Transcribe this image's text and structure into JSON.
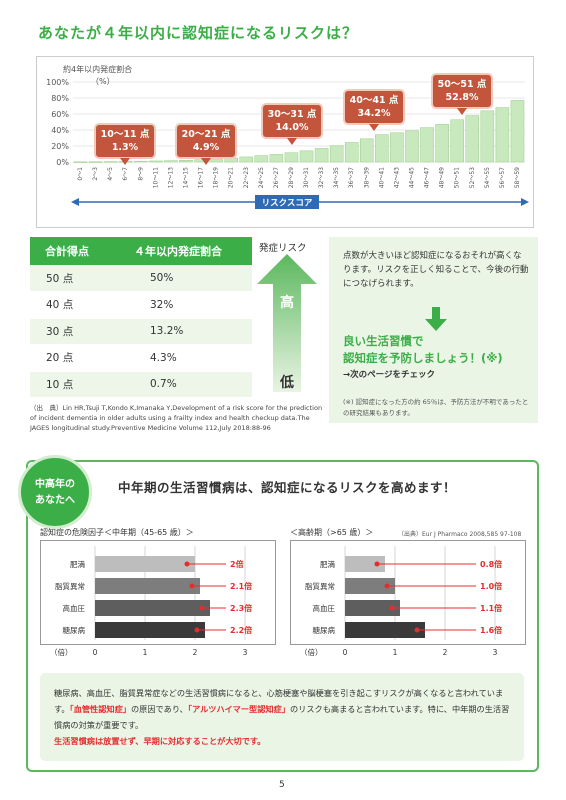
{
  "title": "あなたが４年以内に認知症になるリスクは？",
  "risk_chart": {
    "ylabel_line1": "約4年以内発症割合",
    "ylabel_line2": "（%）",
    "y_ticks": [
      "100%",
      "80%",
      "60%",
      "40%",
      "20%",
      "0%"
    ],
    "xlabel": "リスクスコア",
    "callouts": [
      {
        "score": "10～11 点",
        "rate": "1.3%"
      },
      {
        "score": "20～21 点",
        "rate": "4.9%"
      },
      {
        "score": "30～31 点",
        "rate": "14.0%"
      },
      {
        "score": "40～41 点",
        "rate": "34.2%"
      },
      {
        "score": "50～51 点",
        "rate": "52.8%"
      }
    ]
  },
  "chart_data": {
    "type": "bar",
    "categories": [
      "0～1",
      "2～3",
      "4～5",
      "6～7",
      "8～9",
      "10～11",
      "12～13",
      "14～15",
      "16～17",
      "18～19",
      "20～21",
      "22～23",
      "24～25",
      "26～27",
      "28～29",
      "30～31",
      "32～33",
      "34～35",
      "36～37",
      "38～39",
      "40～41",
      "42～43",
      "44～45",
      "46～47",
      "48～49",
      "50～51",
      "52～53",
      "54～55",
      "56～57",
      "58～59"
    ],
    "values": [
      0.2,
      0.3,
      0.5,
      0.7,
      1.0,
      1.3,
      1.7,
      2.2,
      2.9,
      3.8,
      4.9,
      6.3,
      8.0,
      9.5,
      11.6,
      14.0,
      17.0,
      20.5,
      24.4,
      29.0,
      34.2,
      36.5,
      39.0,
      43.0,
      47.0,
      52.8,
      58.0,
      64.0,
      68.0,
      77.0
    ],
    "ylim": [
      0,
      100
    ]
  },
  "score_table": {
    "headers": [
      "合計得点",
      "４年以内発症割合"
    ],
    "rows": [
      [
        "50 点",
        "50%"
      ],
      [
        "40 点",
        "32%"
      ],
      [
        "30 点",
        "13.2%"
      ],
      [
        "20 点",
        "4.3%"
      ],
      [
        "10 点",
        "0.7%"
      ]
    ]
  },
  "arrow": {
    "label": "発症リスク",
    "high": "高",
    "low": "低"
  },
  "source1": "（出　典）Lin HR,Tsuji T,Kondo K,Imanaka Y,Development of a risk score for the prediction of incident dementia in older adults using a frailty index and health checkup data.The JAGES longitudinal study.Preventive Medicine Volume 112,July 2018:88-96",
  "advice": {
    "text": "点数が大きいほど認知症になるおそれが高くなります。リスクを正しく知ることで、今後の行動につなげられます。",
    "big_line1": "良い生活習慣で",
    "big_line2": "認知症を予防しましょう！(※)",
    "link": "→次のページをチェック",
    "note": "(※) 認知症になった方の約 65％は、予防方法が不明であったとの研究結果もあります。"
  },
  "section": {
    "badge_line1": "中高年の",
    "badge_line2": "あなたへ",
    "headline": "中年期の生活習慣病は、認知症になるリスクを高めます！",
    "source2": "（出典）Eur J Pharmaco 2008,585 97-108"
  },
  "midlife_chart": {
    "title": "認知症の危険因子＜中年期（45-65 歳）＞",
    "axis_unit": "（倍）",
    "x_ticks": [
      "0",
      "1",
      "2",
      "3"
    ],
    "bars": [
      {
        "label": "肥満",
        "value": 2,
        "text": "2倍"
      },
      {
        "label": "脂質異常",
        "value": 2.1,
        "text": "2.1倍"
      },
      {
        "label": "高血圧",
        "value": 2.3,
        "text": "2.3倍"
      },
      {
        "label": "糖尿病",
        "value": 2.2,
        "text": "2.2倍"
      }
    ]
  },
  "elderly_chart": {
    "title": "＜高齢期（>65 歳）＞",
    "axis_unit": "（倍）",
    "x_ticks": [
      "0",
      "1",
      "2",
      "3"
    ],
    "bars": [
      {
        "label": "肥満",
        "value": 0.8,
        "text": "0.8倍"
      },
      {
        "label": "脂質異常",
        "value": 1.0,
        "text": "1.0倍"
      },
      {
        "label": "高血圧",
        "value": 1.1,
        "text": "1.1倍"
      },
      {
        "label": "糖尿病",
        "value": 1.6,
        "text": "1.6倍"
      }
    ]
  },
  "bottom": {
    "p1": "糖尿病、高血圧、脂質異常症などの生活習慣病になると、心筋梗塞や脳梗塞を引き起こすリスクが高くなると言われています。",
    "p2a": "「血管性認知症」",
    "p2b": "の原因であり、",
    "p2c": "「アルツハイマー型認知症」",
    "p2d": "のリスクも高まると言われています。特に、中年期の生活習慣病の対策が重要です。",
    "p3": "生活習慣病は放置せず、早期に対応することが大切です。"
  },
  "page_number": "5"
}
